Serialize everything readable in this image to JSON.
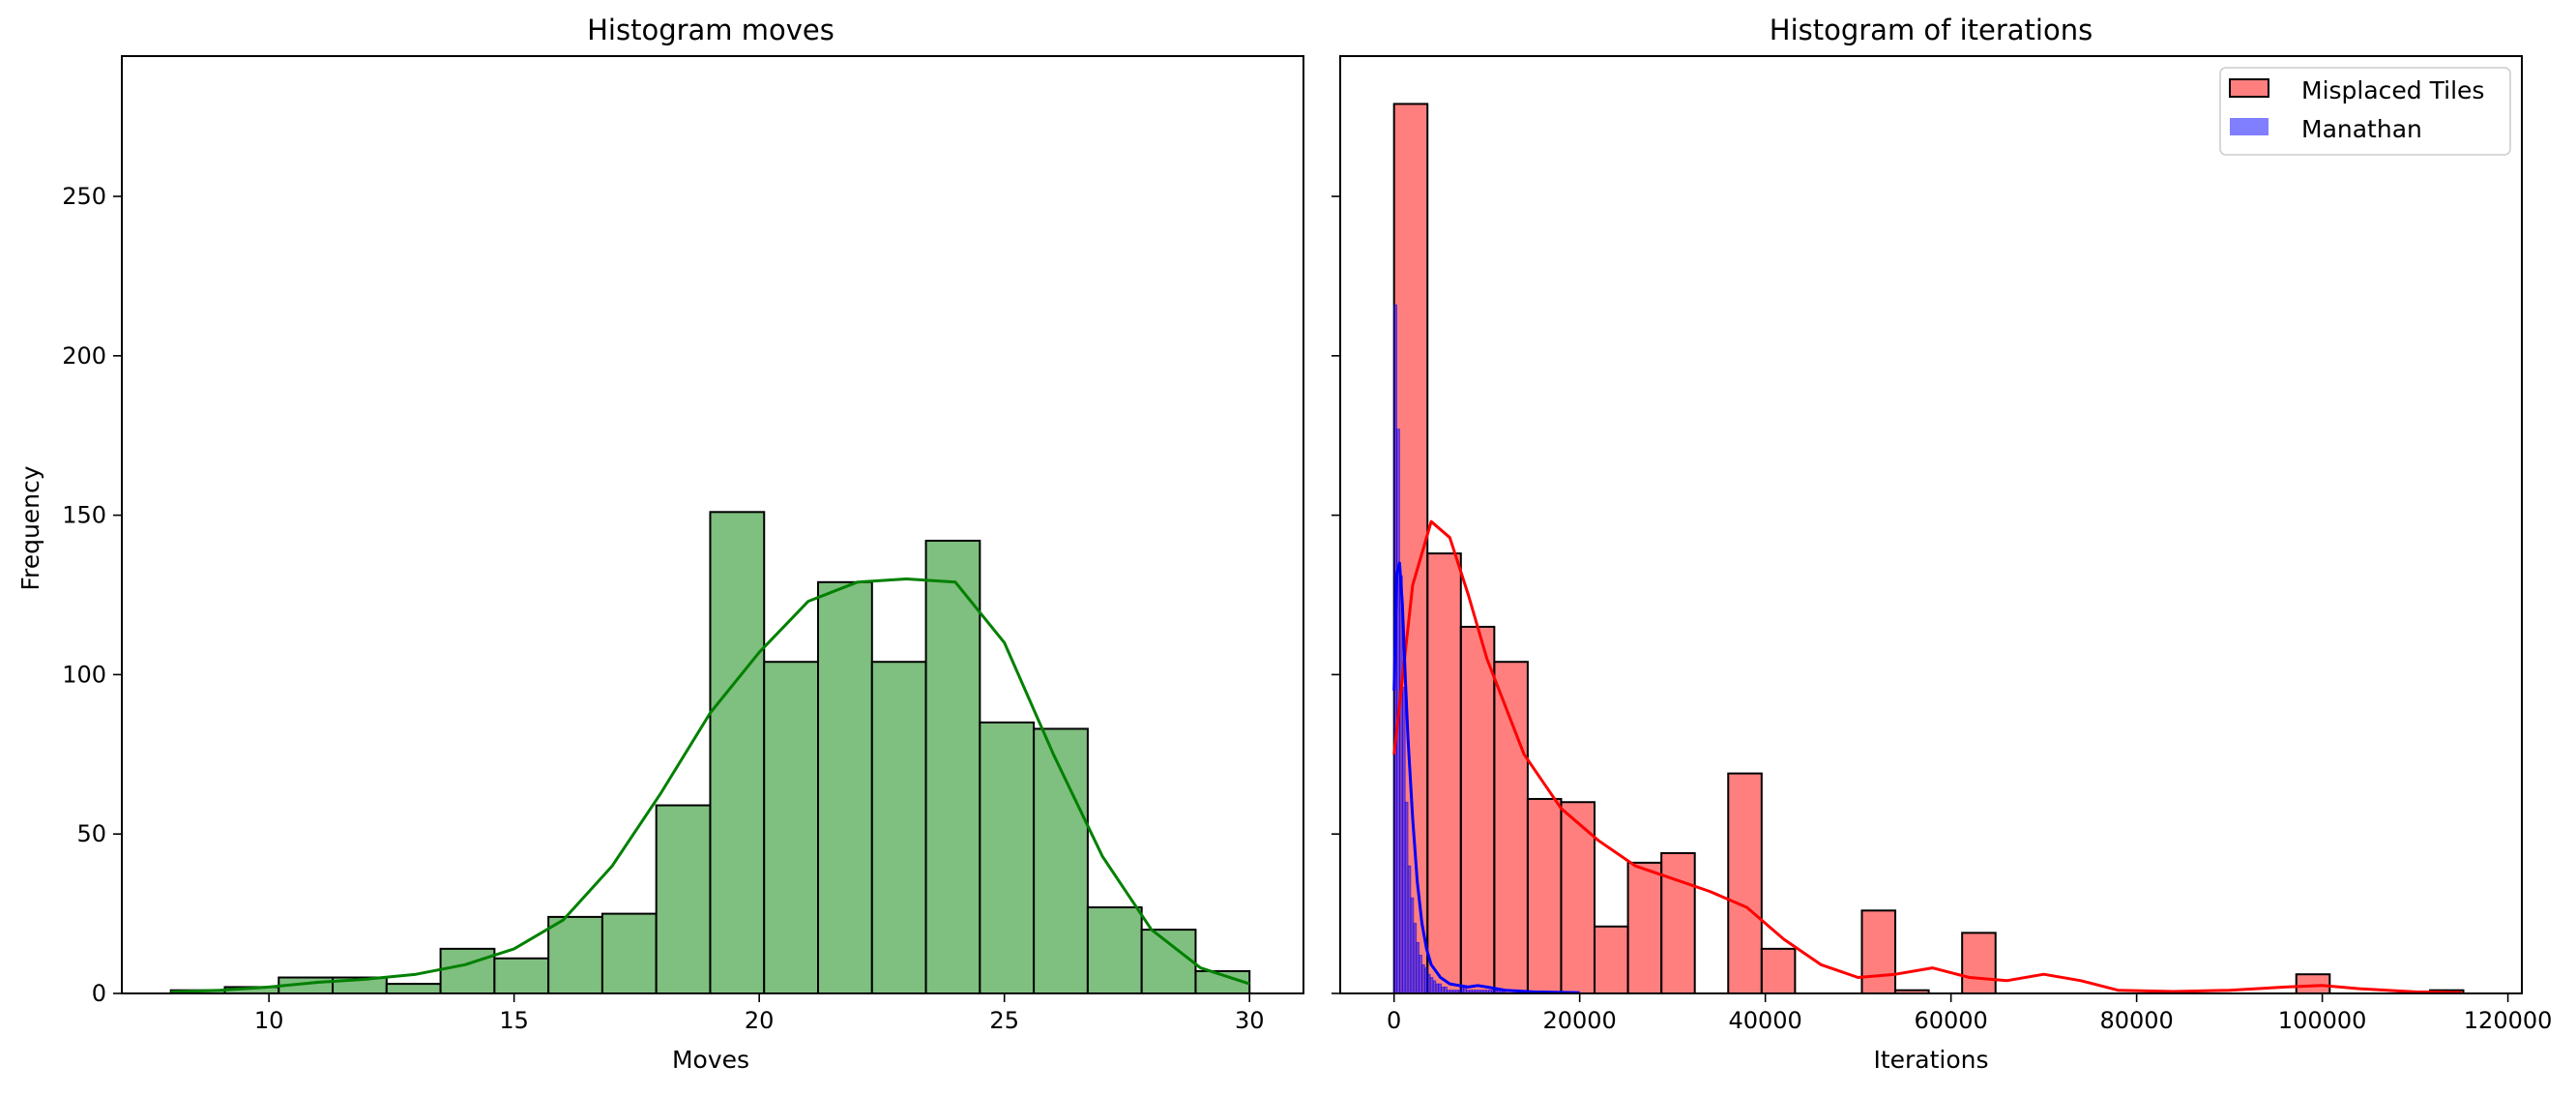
{
  "chart_data": [
    {
      "type": "bar",
      "title": "Histogram moves",
      "xlabel": "Moves",
      "ylabel": "Frequency",
      "xlim": [
        7.0,
        31.1
      ],
      "ylim": [
        0,
        294
      ],
      "xticks": [
        10,
        15,
        20,
        25,
        30
      ],
      "yticks": [
        0,
        50,
        100,
        150,
        200,
        250
      ],
      "bin_edges": [
        8.0,
        9.1,
        10.2,
        11.3,
        12.4,
        13.5,
        14.6,
        15.7,
        16.8,
        17.9,
        19.0,
        20.1,
        21.2,
        22.3,
        23.4,
        24.5,
        25.6,
        26.7,
        27.8,
        28.9,
        30.0
      ],
      "values": [
        1,
        2,
        5,
        5,
        3,
        14,
        11,
        24,
        25,
        59,
        151,
        104,
        129,
        104,
        142,
        85,
        83,
        27,
        20,
        7
      ],
      "colors": {
        "bar_fill": "#7fbf7f",
        "bar_edge": "#000000",
        "kde": "#008000"
      },
      "kde": {
        "x": [
          8,
          9,
          10,
          11,
          12,
          13,
          14,
          15,
          16,
          17,
          18,
          19,
          20,
          21,
          22,
          23,
          24,
          25,
          26,
          27,
          28,
          29,
          30
        ],
        "y": [
          0.5,
          1,
          2,
          3.5,
          4.5,
          6,
          9,
          14,
          23,
          40,
          63,
          88,
          107,
          123,
          129,
          130,
          129,
          110,
          75,
          43,
          20,
          8,
          3
        ]
      }
    },
    {
      "type": "bar",
      "title": "Histogram of iterations",
      "xlabel": "Iterations",
      "ylabel": "Frequency",
      "xlim": [
        -5800,
        121500
      ],
      "ylim": [
        0,
        294
      ],
      "xticks": [
        0,
        20000,
        40000,
        60000,
        80000,
        100000,
        120000
      ],
      "yticks": [
        0,
        50,
        100,
        150,
        200,
        250
      ],
      "legend": {
        "position": "upper right",
        "entries": [
          "Misplaced Tiles",
          "Manathan"
        ]
      },
      "series": [
        {
          "name": "Misplaced Tiles",
          "color": "#ff0000",
          "bin_width": 3600,
          "bin_start": 0,
          "values": [
            279,
            138,
            115,
            104,
            61,
            60,
            21,
            41,
            44,
            0,
            69,
            14,
            0,
            0,
            26,
            1,
            0,
            19,
            0,
            0,
            0,
            0,
            0,
            0,
            0,
            0,
            0,
            6,
            0,
            0,
            0,
            1
          ],
          "kde": {
            "x": [
              0,
              2000,
              4000,
              6000,
              8000,
              10000,
              14000,
              18000,
              22000,
              26000,
              30000,
              34000,
              38000,
              42000,
              46000,
              50000,
              54000,
              58000,
              62000,
              66000,
              70000,
              74000,
              78000,
              84000,
              90000,
              96000,
              100000,
              104000,
              110000,
              115000
            ],
            "y": [
              75,
              128,
              148,
              143,
              125,
              105,
              75,
              58,
              48,
              40,
              36,
              32,
              27,
              17,
              9,
              5,
              6,
              8,
              5,
              4,
              6,
              4,
              1,
              0.6,
              1,
              2,
              2.5,
              1.5,
              0.5,
              0.3
            ]
          }
        },
        {
          "name": "Manathan",
          "color": "#0000ff",
          "bin_width": 300,
          "bin_start": 0,
          "values": [
            216,
            177,
            131,
            96,
            60,
            40,
            30,
            22,
            16,
            12,
            9,
            8,
            6,
            5,
            4,
            3,
            3,
            2,
            2,
            1,
            1,
            1,
            1,
            1,
            2,
            2,
            1,
            1,
            1,
            1,
            1,
            1,
            1,
            1,
            1,
            1,
            1,
            1,
            1,
            1
          ],
          "kde": {
            "x": [
              0,
              300,
              600,
              900,
              1200,
              1500,
              2000,
              2500,
              3000,
              3500,
              4000,
              5000,
              6000,
              7000,
              8000,
              9000,
              10000,
              12000,
              15000,
              20000
            ],
            "y": [
              95,
              132,
              135,
              122,
              100,
              80,
              55,
              35,
              22,
              14,
              9,
              5,
              3,
              2.5,
              2,
              2.5,
              2,
              1,
              0.5,
              0.2
            ]
          }
        }
      ]
    }
  ]
}
